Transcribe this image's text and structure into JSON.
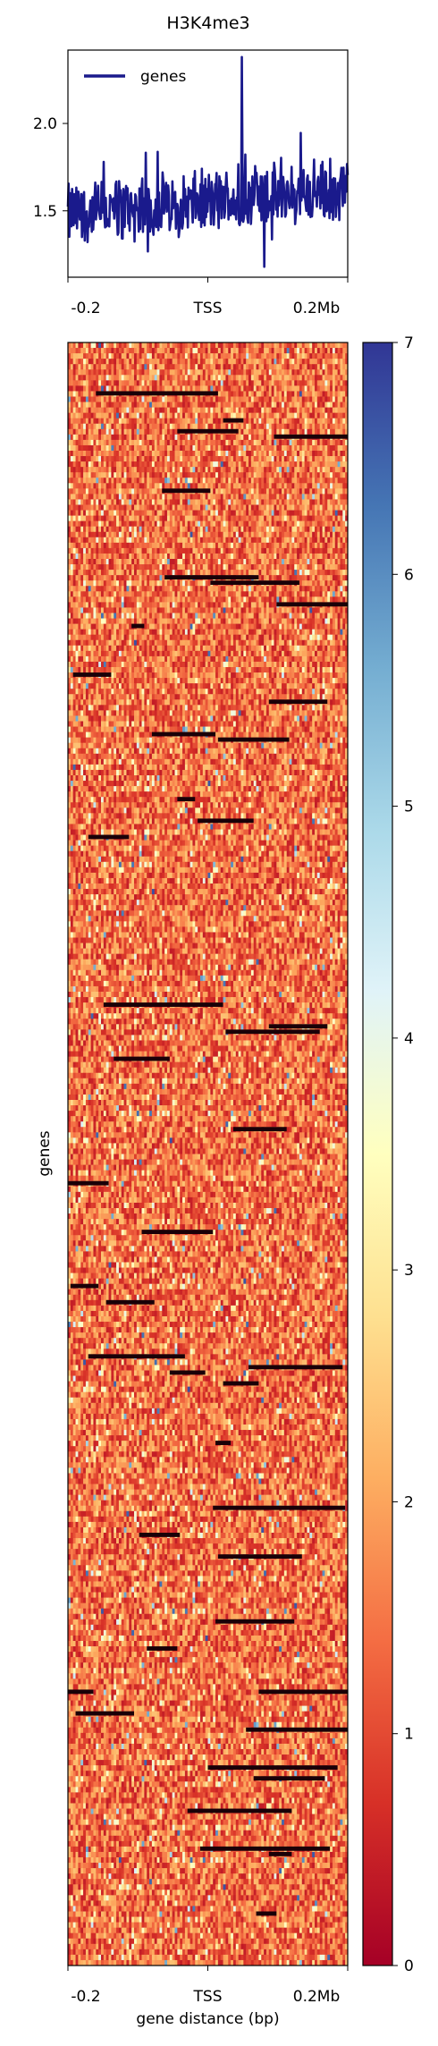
{
  "chart_data": [
    {
      "type": "line",
      "title": "H3K4me3",
      "xlabel": "",
      "ylabel": "",
      "x_tick_labels": [
        "-0.2",
        "TSS",
        "0.2Mb"
      ],
      "y_ticks": [
        1.5,
        2.0
      ],
      "y_tick_labels": [
        "1.5",
        "2.0"
      ],
      "xlim": [
        -0.2,
        0.2
      ],
      "ylim": [
        1.12,
        2.42
      ],
      "legend": {
        "position": "top-left",
        "entries": [
          "genes"
        ]
      },
      "series": [
        {
          "name": "genes",
          "color": "#1a1a8c",
          "x_range": [
            -0.2,
            0.2
          ],
          "points": 400,
          "baseline_start": 1.48,
          "baseline_end": 1.62,
          "amplitude": 0.16,
          "max": 2.38,
          "min": 1.18
        }
      ]
    },
    {
      "type": "heatmap",
      "xlabel": "gene distance (bp)",
      "ylabel": "genes",
      "x_tick_labels": [
        "-0.2",
        "TSS",
        "0.2Mb"
      ],
      "colormap": "RdYlBu",
      "colorbar": {
        "min": 0,
        "max": 7,
        "ticks": [
          0,
          1,
          2,
          3,
          4,
          5,
          6,
          7
        ],
        "tick_labels": [
          "0",
          "1",
          "2",
          "3",
          "4",
          "5",
          "6",
          "7"
        ],
        "colors": [
          "#a50026",
          "#d73027",
          "#f46d43",
          "#fdae61",
          "#fee090",
          "#ffffbf",
          "#e0f3f8",
          "#abd9e9",
          "#74add1",
          "#4575b4",
          "#313695"
        ]
      },
      "rows": 300,
      "cols": 110,
      "typical_range": [
        0.4,
        2.4
      ]
    }
  ]
}
